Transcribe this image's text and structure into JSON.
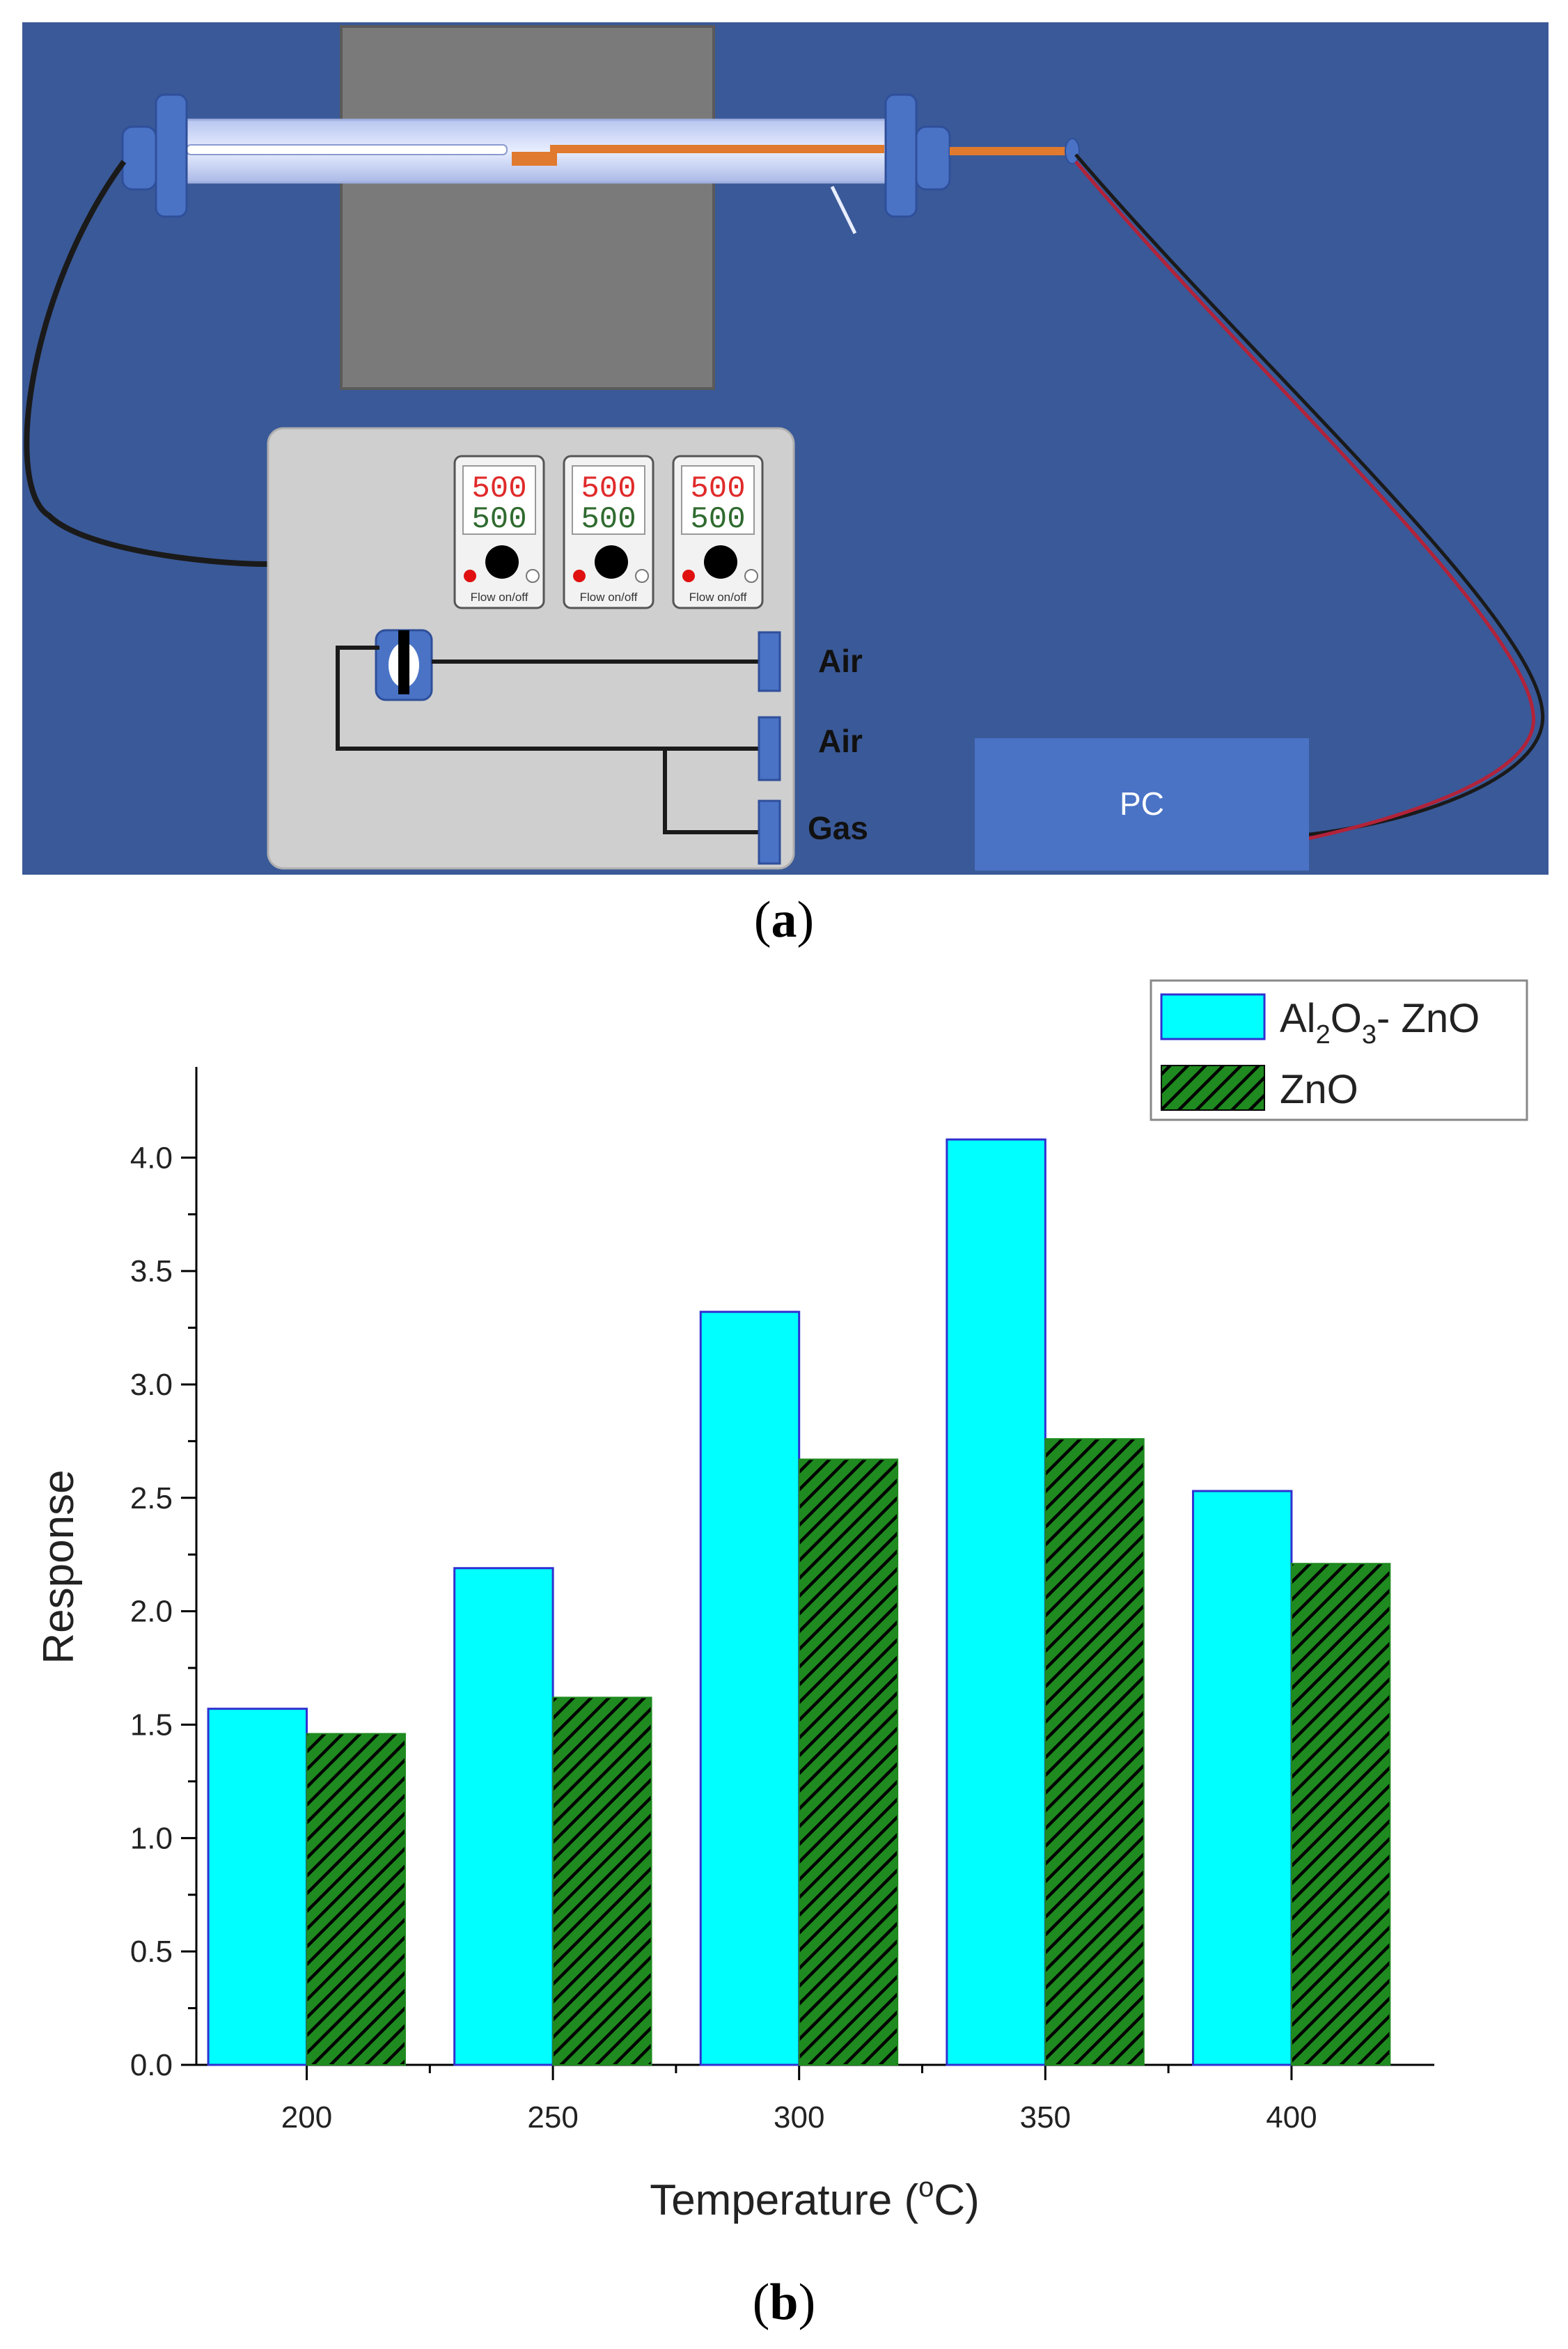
{
  "figure_a": {
    "caption_letter": "a",
    "controllers": [
      {
        "top": "500",
        "bottom": "500",
        "label": "Flow on/off"
      },
      {
        "top": "500",
        "bottom": "500",
        "label": "Flow on/off"
      },
      {
        "top": "500",
        "bottom": "500",
        "label": "Flow on/off"
      }
    ],
    "inlets": [
      "Air",
      "Air",
      "Gas"
    ],
    "pc_label": "PC",
    "colors": {
      "background": "#3a5998",
      "furnace": "#7a7a7a",
      "panel": "#cfcfcf",
      "sample": "#e07a2e",
      "cable": "#1a1a1a",
      "signal_wire": "#b2233a",
      "pc_box": "#4a73c6"
    }
  },
  "figure_b": {
    "caption_letter": "b"
  },
  "chart_data": {
    "type": "bar",
    "xlabel": "Temperature (°C)",
    "ylabel": "Response",
    "categories": [
      "200",
      "250",
      "300",
      "350",
      "400"
    ],
    "series": [
      {
        "name": "Al2O3- ZnO",
        "values": [
          1.57,
          2.19,
          3.32,
          4.08,
          2.53
        ],
        "color": "#00ffff",
        "edge": "#3030d0"
      },
      {
        "name": "ZnO",
        "values": [
          1.46,
          1.62,
          2.67,
          2.76,
          2.21
        ],
        "color": "#1f8a1f",
        "pattern": "diagonal-hatch-black"
      }
    ],
    "legend": {
      "series0": {
        "main": "Al",
        "sub1": "2",
        "mid": "O",
        "sub2": "3",
        "tail": "- ZnO"
      },
      "series1": "ZnO",
      "placement": "top-right"
    },
    "ylim": [
      0,
      4.4
    ],
    "yticks": [
      "0.0",
      "0.5",
      "1.0",
      "1.5",
      "2.0",
      "2.5",
      "3.0",
      "3.5",
      "4.0"
    ],
    "ytick_values": [
      0,
      0.5,
      1.0,
      1.5,
      2.0,
      2.5,
      3.0,
      3.5,
      4.0
    ],
    "xlabel_parts": {
      "pre": "Temperature (",
      "sup": "o",
      "post": "C)"
    },
    "grid": false
  }
}
